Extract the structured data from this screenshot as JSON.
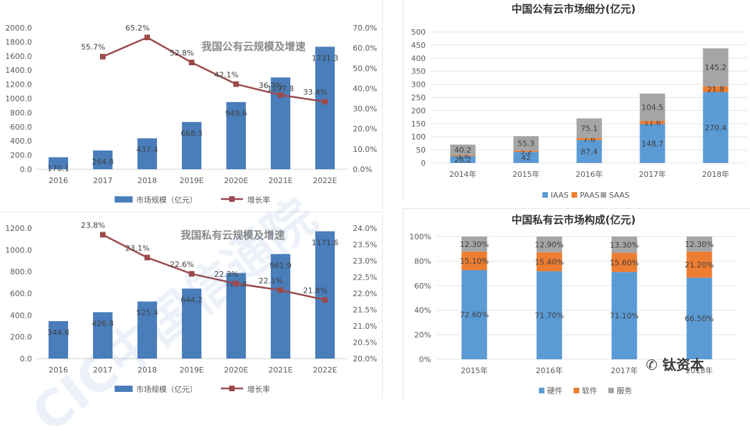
{
  "chart_data": [
    {
      "id": "public-scale",
      "type": "bar",
      "title": "我国公有云规模及增速",
      "categories": [
        "2016",
        "2017",
        "2018",
        "2019E",
        "2020E",
        "2021E",
        "2022E"
      ],
      "series": [
        {
          "name": "市场规模（亿元）",
          "kind": "bar",
          "axis": "left",
          "values": [
            170.1,
            264.8,
            437.4,
            668.3,
            949.6,
            1297.8,
            1731.3
          ],
          "labels": [
            "170.1",
            "264.8",
            "437.4",
            "668.3",
            "949.6",
            "1297.8",
            "1731.3"
          ]
        },
        {
          "name": "增长率",
          "kind": "line",
          "axis": "right",
          "values": [
            null,
            55.7,
            65.2,
            52.8,
            42.1,
            36.7,
            33.4
          ],
          "labels": [
            "",
            "55.7%",
            "65.2%",
            "52.8%",
            "42.1%",
            "36.7%",
            "33.4%"
          ]
        }
      ],
      "ylim": [
        0,
        2000
      ],
      "y_ticks": [
        "0.0",
        "200.0",
        "400.0",
        "600.0",
        "800.0",
        "1000.0",
        "1200.0",
        "1400.0",
        "1600.0",
        "1800.0",
        "2000.0"
      ],
      "y2lim": [
        0,
        70
      ],
      "y2_ticks": [
        "0.0%",
        "10.0%",
        "20.0%",
        "30.0%",
        "40.0%",
        "50.0%",
        "60.0%",
        "70.0%"
      ],
      "legend_position": "bottom",
      "colors": {
        "bar": "#4a7ebb",
        "line": "#9b4a4c"
      }
    },
    {
      "id": "private-scale",
      "type": "bar",
      "title": "我国私有云规模及增速",
      "categories": [
        "2016",
        "2017",
        "2018",
        "2019E",
        "2020E",
        "2021E",
        "2022E"
      ],
      "series": [
        {
          "name": "市场规模（亿元）",
          "kind": "bar",
          "axis": "left",
          "values": [
            344.8,
            426.8,
            525.4,
            644.2,
            787.8,
            961.9,
            1171.6
          ],
          "labels": [
            "344.8",
            "426.8",
            "525.4",
            "644.2",
            "787.8",
            "961.9",
            "1171.6"
          ]
        },
        {
          "name": "增长率",
          "kind": "line",
          "axis": "right",
          "values": [
            null,
            23.8,
            23.1,
            22.6,
            22.3,
            22.1,
            21.8
          ],
          "labels": [
            "",
            "23.8%",
            "23.1%",
            "22.6%",
            "22.3%",
            "22.1%",
            "21.8%"
          ]
        }
      ],
      "ylim": [
        0,
        1200
      ],
      "y_ticks": [
        "0.0",
        "200.0",
        "400.0",
        "600.0",
        "800.0",
        "1000.0",
        "1200.0"
      ],
      "y2lim": [
        20,
        24
      ],
      "y2_ticks": [
        "20.0%",
        "20.5%",
        "21.0%",
        "21.5%",
        "22.0%",
        "22.5%",
        "23.0%",
        "23.5%",
        "24.0%"
      ],
      "legend_position": "bottom",
      "colors": {
        "bar": "#4a7ebb",
        "line": "#9b4a4c"
      }
    },
    {
      "id": "public-segments",
      "type": "bar",
      "stacked": true,
      "title": "中国公有云市场细分(亿元)",
      "categories": [
        "2014年",
        "2015年",
        "2016年",
        "2017年",
        "2018年"
      ],
      "series": [
        {
          "name": "IAAS",
          "values": [
            26.2,
            42,
            87.4,
            148.7,
            270.4
          ],
          "labels": [
            "26.2",
            "42",
            "87.4",
            "148.7",
            "270.4"
          ]
        },
        {
          "name": "PAAS",
          "values": [
            3.8,
            5.2,
            7.6,
            11.6,
            21.8
          ],
          "labels": [
            "3.8",
            "5.2",
            "7.6",
            "11.6",
            "21.8"
          ]
        },
        {
          "name": "SAAS",
          "values": [
            40.2,
            55.3,
            75.1,
            104.5,
            145.2
          ],
          "labels": [
            "40.2",
            "55.3",
            "75.1",
            "104.5",
            "145.2"
          ]
        }
      ],
      "ylim": [
        0,
        500
      ],
      "y_ticks": [
        "0",
        "50",
        "100",
        "150",
        "200",
        "250",
        "300",
        "350",
        "400",
        "450",
        "500"
      ],
      "legend_position": "bottom",
      "colors": {
        "IAAS": "#5b9bd5",
        "PAAS": "#ed7d31",
        "SAAS": "#a5a5a5"
      }
    },
    {
      "id": "private-composition",
      "type": "bar",
      "stacked": true,
      "percent": true,
      "title": "中国私有云市场构成(亿元)",
      "categories": [
        "2015年",
        "2016年",
        "2017年",
        "2018年"
      ],
      "series": [
        {
          "name": "硬件",
          "values": [
            72.6,
            71.7,
            71.1,
            66.5
          ],
          "labels": [
            "72.60%",
            "71.70%",
            "71.10%",
            "66.50%"
          ]
        },
        {
          "name": "软件",
          "values": [
            15.1,
            15.4,
            15.6,
            21.2
          ],
          "labels": [
            "15.10%",
            "15.40%",
            "15.60%",
            "21.20%"
          ]
        },
        {
          "name": "服务",
          "values": [
            12.3,
            12.9,
            13.3,
            12.3
          ],
          "labels": [
            "12.30%",
            "12.90%",
            "13.30%",
            "12.30%"
          ]
        }
      ],
      "ylim": [
        0,
        100
      ],
      "y_ticks": [
        "0%",
        "20%",
        "40%",
        "60%",
        "80%",
        "100%"
      ],
      "legend_position": "bottom",
      "colors": {
        "硬件": "#5b9bd5",
        "软件": "#ed7d31",
        "服务": "#a5a5a5"
      }
    }
  ],
  "watermark": {
    "text": "CIC中国信通院",
    "brand": "钛资本"
  }
}
